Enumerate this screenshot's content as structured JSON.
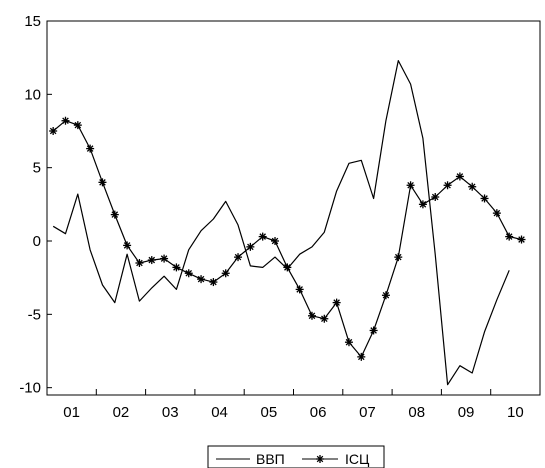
{
  "chart_data": {
    "type": "line",
    "title": "",
    "xlabel": "",
    "ylabel": "",
    "x_tick_labels": [
      "01",
      "02",
      "03",
      "04",
      "05",
      "06",
      "07",
      "08",
      "09",
      "10"
    ],
    "y_tick_labels": [
      "15",
      "10",
      "5",
      "0",
      "-5",
      "-10"
    ],
    "y_ticks": [
      15,
      10,
      5,
      0,
      -5,
      -10
    ],
    "ylim": [
      -10.5,
      15
    ],
    "x_range": [
      "2001Q1",
      "2010Q4"
    ],
    "x": [
      "2001Q1",
      "2001Q2",
      "2001Q3",
      "2001Q4",
      "2002Q1",
      "2002Q2",
      "2002Q3",
      "2002Q4",
      "2003Q1",
      "2003Q2",
      "2003Q3",
      "2003Q4",
      "2004Q1",
      "2004Q2",
      "2004Q3",
      "2004Q4",
      "2005Q1",
      "2005Q2",
      "2005Q3",
      "2005Q4",
      "2006Q1",
      "2006Q2",
      "2006Q3",
      "2006Q4",
      "2007Q1",
      "2007Q2",
      "2007Q3",
      "2007Q4",
      "2008Q1",
      "2008Q2",
      "2008Q3",
      "2008Q4",
      "2009Q1",
      "2009Q2",
      "2009Q3",
      "2009Q4",
      "2010Q1",
      "2010Q2",
      "2010Q3",
      "2010Q4"
    ],
    "grid": false,
    "legend_position": "bottom-center",
    "series": [
      {
        "name": "ВВП",
        "marker": "none",
        "color": "#000000",
        "values": [
          1.0,
          0.5,
          3.2,
          -0.6,
          -3.0,
          -4.2,
          -0.9,
          -4.1,
          -3.2,
          -2.4,
          -3.3,
          -0.6,
          0.7,
          1.5,
          2.7,
          1.1,
          -1.7,
          -1.8,
          -1.1,
          -1.9,
          -0.9,
          -0.4,
          0.6,
          3.4,
          5.3,
          5.5,
          2.9,
          8.2,
          12.3,
          10.7,
          7.0,
          -0.9,
          -9.8,
          -8.5,
          -9.0,
          -6.2,
          -4.0,
          -2.0,
          null,
          null
        ]
      },
      {
        "name": "ІСЦ",
        "marker": "star",
        "color": "#000000",
        "values": [
          7.5,
          8.2,
          7.9,
          6.3,
          4.0,
          1.8,
          -0.3,
          -1.5,
          -1.3,
          -1.2,
          -1.8,
          -2.2,
          -2.6,
          -2.8,
          -2.2,
          -1.1,
          -0.4,
          0.3,
          0.0,
          -1.8,
          -3.3,
          -5.1,
          -5.3,
          -4.2,
          -6.9,
          -7.9,
          -6.1,
          -3.7,
          -1.1,
          3.8,
          2.5,
          3.0,
          3.8,
          4.4,
          3.7,
          2.9,
          1.9,
          0.3,
          0.1,
          null
        ]
      }
    ]
  }
}
